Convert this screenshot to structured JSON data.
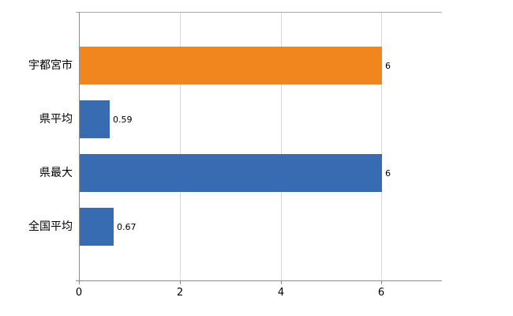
{
  "chart_data": {
    "type": "bar",
    "orientation": "horizontal",
    "title": "",
    "categories": [
      "宇都宮市",
      "県平均",
      "県最大",
      "全国平均"
    ],
    "values": [
      6,
      0.59,
      6,
      0.67
    ],
    "value_labels": [
      "6",
      "0.59",
      "6",
      "0.67"
    ],
    "bar_colors": [
      "#f0861d",
      "#376cb3",
      "#376cb3",
      "#376cb3"
    ],
    "xlim": [
      0,
      7.2
    ],
    "xticks": [
      0,
      2,
      4,
      6
    ],
    "xtick_labels": [
      "0",
      "2",
      "4",
      "6"
    ],
    "grid": true,
    "legend": "none"
  },
  "colors": {
    "background": "#ffffff",
    "grid": "#d9d9d9",
    "axis": "#8c8c8c",
    "text": "#000000"
  }
}
